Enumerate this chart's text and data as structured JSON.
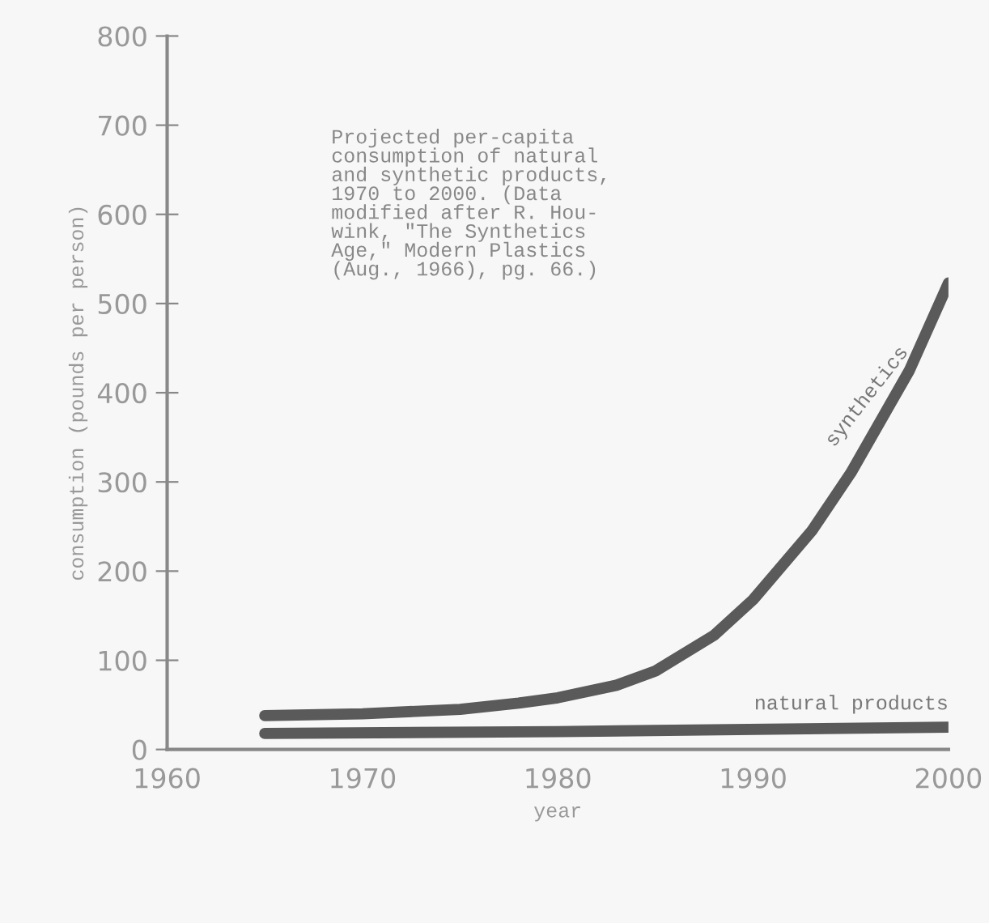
{
  "chart_data": {
    "type": "line",
    "xlabel": "year",
    "ylabel": "consumption (pounds per person)",
    "xlim": [
      1960,
      2000
    ],
    "xticks": [
      1960,
      1970,
      1980,
      1990,
      2000
    ],
    "ylim": [
      0,
      800
    ],
    "yticks": [
      0,
      100,
      200,
      300,
      400,
      500,
      600,
      700,
      800
    ],
    "grid": false,
    "legend": false,
    "marker": "none",
    "line_style": "solid",
    "series": [
      {
        "name": "synthetics",
        "color": "#5a5a5a",
        "x": [
          1965,
          1970,
          1975,
          1978,
          1980,
          1983,
          1985,
          1988,
          1990,
          1993,
          1995,
          1998,
          2000
        ],
        "values": [
          38,
          40,
          45,
          52,
          58,
          72,
          88,
          128,
          168,
          245,
          310,
          425,
          523
        ]
      },
      {
        "name": "natural products",
        "color": "#5a5a5a",
        "x": [
          1965,
          1980,
          2000
        ],
        "values": [
          18,
          20,
          25
        ]
      }
    ],
    "annotations": [
      "Projected per-capita\nconsumption of natural\nand synthetic products,\n1970 to 2000. (Data\nmodified after R. Hou-\nwink, \"The Synthetics\nAge,\" Modern Plastics\n(Aug., 1966), pg. 66.)"
    ]
  }
}
